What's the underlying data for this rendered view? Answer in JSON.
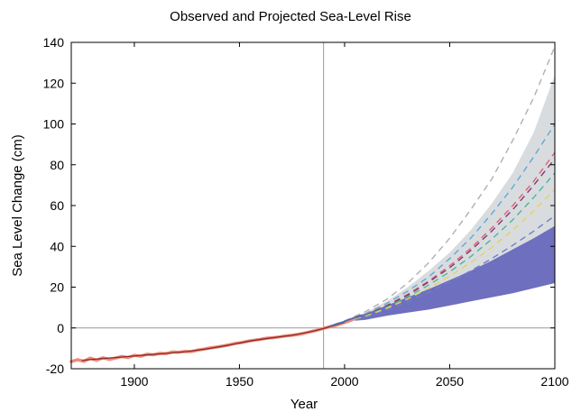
{
  "chart_data": {
    "type": "line",
    "title": "Observed and Projected Sea-Level Rise",
    "xlabel": "Year",
    "ylabel": "Sea Level Change (cm)",
    "xlim": [
      1870,
      2100
    ],
    "ylim": [
      -20,
      140
    ],
    "x_ticks": [
      1900,
      1950,
      2000,
      2050,
      2100
    ],
    "y_ticks": [
      -20,
      0,
      20,
      40,
      60,
      80,
      100,
      120,
      140
    ],
    "reference_year": 1990,
    "reference_level": 0,
    "grid": false,
    "observed_tide_gauge": {
      "color": "#f08a78",
      "points": [
        [
          1870,
          -16.5
        ],
        [
          1873,
          -15.6
        ],
        [
          1876,
          -16.4
        ],
        [
          1879,
          -14.8
        ],
        [
          1882,
          -15.9
        ],
        [
          1885,
          -14.6
        ],
        [
          1888,
          -15.4
        ],
        [
          1891,
          -14.8
        ],
        [
          1894,
          -14.0
        ],
        [
          1897,
          -14.5
        ],
        [
          1900,
          -13.4
        ],
        [
          1903,
          -13.9
        ],
        [
          1906,
          -12.9
        ],
        [
          1909,
          -13.2
        ],
        [
          1912,
          -12.5
        ],
        [
          1915,
          -12.6
        ],
        [
          1918,
          -11.8
        ],
        [
          1921,
          -11.9
        ],
        [
          1924,
          -11.5
        ],
        [
          1927,
          -11.6
        ],
        [
          1930,
          -10.9
        ],
        [
          1933,
          -10.4
        ],
        [
          1936,
          -9.8
        ],
        [
          1939,
          -9.4
        ],
        [
          1942,
          -8.9
        ],
        [
          1945,
          -8.3
        ],
        [
          1948,
          -7.6
        ],
        [
          1951,
          -7.2
        ],
        [
          1954,
          -6.5
        ],
        [
          1957,
          -6.0
        ],
        [
          1960,
          -5.6
        ],
        [
          1963,
          -5.0
        ],
        [
          1966,
          -4.8
        ],
        [
          1969,
          -4.4
        ],
        [
          1972,
          -3.9
        ],
        [
          1975,
          -3.6
        ],
        [
          1978,
          -3.2
        ],
        [
          1981,
          -2.6
        ],
        [
          1984,
          -1.8
        ],
        [
          1987,
          -1.1
        ],
        [
          1990,
          -0.2
        ],
        [
          1993,
          0.6
        ],
        [
          1996,
          1.3
        ],
        [
          1999,
          2.3
        ],
        [
          2002,
          3.4
        ],
        [
          2005,
          4.8
        ]
      ]
    },
    "observed_smoothed": {
      "color": "#8b2a2a",
      "points": [
        [
          1875,
          -15.9
        ],
        [
          1885,
          -15.0
        ],
        [
          1895,
          -14.2
        ],
        [
          1905,
          -13.3
        ],
        [
          1915,
          -12.5
        ],
        [
          1925,
          -11.6
        ],
        [
          1935,
          -10.2
        ],
        [
          1945,
          -8.4
        ],
        [
          1955,
          -6.4
        ],
        [
          1965,
          -4.9
        ],
        [
          1975,
          -3.6
        ],
        [
          1985,
          -1.6
        ],
        [
          1990,
          -0.3
        ],
        [
          1995,
          1.2
        ],
        [
          2000,
          2.8
        ]
      ]
    },
    "satellite_altimetry": {
      "color": "#4a6fb0",
      "points": [
        [
          1993,
          0.8
        ],
        [
          1996,
          1.8
        ],
        [
          1999,
          2.8
        ],
        [
          2002,
          4.0
        ],
        [
          2005,
          5.2
        ],
        [
          2008,
          6.3
        ]
      ]
    },
    "projection_range_grey": {
      "color": "#d9dcdf",
      "x": [
        1990,
        2000,
        2010,
        2020,
        2030,
        2040,
        2050,
        2060,
        2070,
        2080,
        2090,
        2100
      ],
      "lower": [
        0,
        2,
        5,
        8,
        11.5,
        15,
        18.5,
        22,
        26,
        30,
        34,
        38
      ],
      "upper": [
        0,
        3,
        7.5,
        13,
        20,
        28,
        37,
        48,
        61,
        76,
        96,
        124
      ]
    },
    "ipcc_projection_band": {
      "color": "#6e6fbf",
      "x": [
        2005,
        2010,
        2020,
        2030,
        2040,
        2050,
        2060,
        2070,
        2080,
        2090,
        2100
      ],
      "lower": [
        3.5,
        4,
        6,
        7.5,
        9,
        11,
        13,
        15,
        17,
        19.5,
        22
      ],
      "upper": [
        6,
        7,
        11,
        15,
        19,
        23.5,
        28,
        33,
        38.5,
        44,
        50
      ]
    },
    "scenario_projections": [
      {
        "color": "#b0b0b0",
        "x": [
          1990,
          2000,
          2010,
          2020,
          2030,
          2040,
          2050,
          2060,
          2070,
          2080,
          2090,
          2100
        ],
        "values": [
          0,
          3.5,
          8,
          14,
          22,
          32,
          44,
          58,
          73,
          92,
          113,
          138
        ]
      },
      {
        "color": "#5fa8d8",
        "x": [
          1990,
          2000,
          2010,
          2020,
          2030,
          2040,
          2050,
          2060,
          2070,
          2080,
          2090,
          2100
        ],
        "values": [
          0,
          3,
          7,
          12,
          18,
          25,
          34,
          44,
          56,
          69,
          84,
          100
        ]
      },
      {
        "color": "#e0606e",
        "x": [
          1990,
          2000,
          2010,
          2020,
          2030,
          2040,
          2050,
          2060,
          2070,
          2080,
          2090,
          2100
        ],
        "values": [
          0,
          2.8,
          6.5,
          11,
          16.5,
          23,
          30.5,
          39,
          49,
          60,
          72,
          86
        ]
      },
      {
        "color": "#7a3a7a",
        "x": [
          1990,
          2000,
          2010,
          2020,
          2030,
          2040,
          2050,
          2060,
          2070,
          2080,
          2090,
          2100
        ],
        "values": [
          0,
          2.8,
          6.3,
          10.8,
          16,
          22.5,
          29.5,
          38,
          47.5,
          58,
          70,
          83
        ]
      },
      {
        "color": "#4ab79a",
        "x": [
          1990,
          2000,
          2010,
          2020,
          2030,
          2040,
          2050,
          2060,
          2070,
          2080,
          2090,
          2100
        ],
        "values": [
          0,
          2.7,
          6,
          10.2,
          15.2,
          21,
          27.5,
          35,
          43.5,
          53,
          64,
          76
        ]
      },
      {
        "color": "#e6d25a",
        "x": [
          1990,
          2000,
          2010,
          2020,
          2030,
          2040,
          2050,
          2060,
          2070,
          2080,
          2090,
          2100
        ],
        "values": [
          0,
          2.6,
          5.7,
          9.6,
          14.2,
          19.5,
          25.5,
          32,
          39.5,
          48,
          57.5,
          68
        ]
      },
      {
        "color": "#6e7fc4",
        "x": [
          1990,
          2000,
          2010,
          2020,
          2030,
          2040,
          2050,
          2060,
          2070,
          2080,
          2090,
          2100
        ],
        "values": [
          0,
          2.5,
          5.3,
          8.8,
          12.8,
          17.5,
          22.5,
          28,
          34,
          40.5,
          47.5,
          55
        ]
      }
    ]
  }
}
